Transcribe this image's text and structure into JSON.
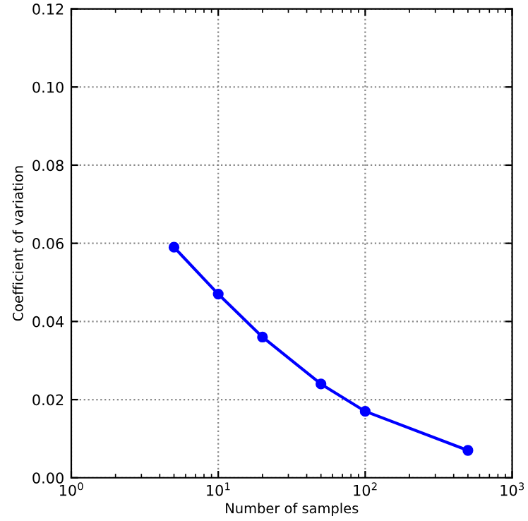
{
  "chart_data": {
    "type": "line",
    "xlabel": "Number of samples",
    "ylabel": "Coefficient of variation",
    "x": [
      5,
      10,
      20,
      50,
      100,
      500
    ],
    "series": [
      {
        "color": "#0000ff",
        "values": [
          0.059,
          0.047,
          0.036,
          0.024,
          0.017,
          0.007
        ]
      }
    ],
    "log": "x",
    "xlim": [
      1,
      1000
    ],
    "xticks": [
      {
        "value": 1,
        "label": "10$^{0}$"
      },
      {
        "value": 10,
        "label": "10$^{1}$"
      },
      {
        "value": 100,
        "label": "10$^{2}$"
      },
      {
        "value": 1000,
        "label": "10$^{3}$"
      }
    ],
    "ylim": [
      0,
      0.12
    ],
    "yticks": [
      {
        "value": 0,
        "label": "0.00"
      },
      {
        "value": 0.02,
        "label": "0.02"
      },
      {
        "value": 0.04,
        "label": "0.04"
      },
      {
        "value": 0.06,
        "label": "0.06"
      },
      {
        "value": 0.08,
        "label": "0.08"
      },
      {
        "value": 0.1,
        "label": "0.10"
      },
      {
        "value": 0.12,
        "label": "0.12"
      }
    ],
    "grid": true,
    "marker": "circle",
    "line_style": "solid"
  }
}
